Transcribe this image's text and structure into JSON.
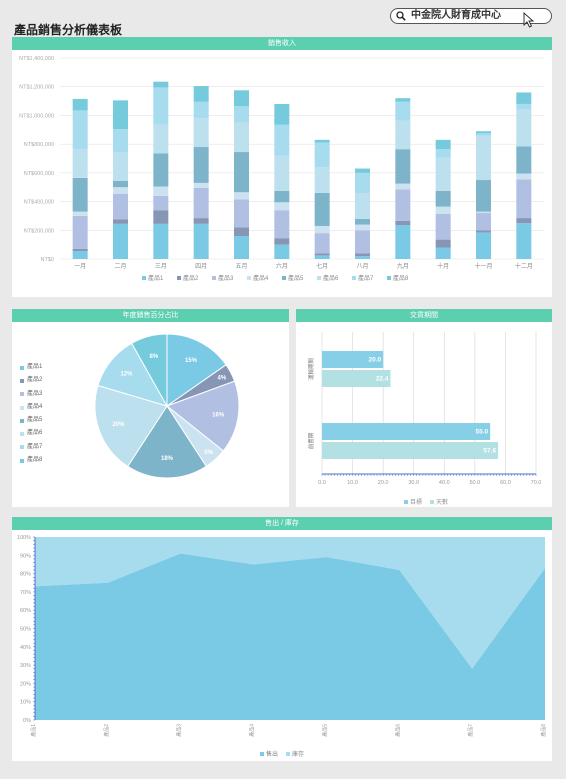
{
  "page_title": "產品銷售分析儀表板",
  "search": {
    "text": "中金院人財育成中心"
  },
  "colors": [
    "#7bcae5",
    "#8696b4",
    "#b0bfe2",
    "#cbe3f1",
    "#7eb4c9",
    "#bde0ee",
    "#a7dbee",
    "#75cbdc"
  ],
  "chart_data": [
    {
      "type": "bar",
      "stacked": true,
      "title": "銷售收入",
      "categories": [
        "一月",
        "二月",
        "三月",
        "四月",
        "五月",
        "六月",
        "七月",
        "八月",
        "九月",
        "十月",
        "十一月",
        "十二月"
      ],
      "ylim": [
        0,
        1400000
      ],
      "yticks": [
        0,
        200000,
        400000,
        600000,
        800000,
        1000000,
        1200000,
        1400000
      ],
      "ytick_labels": [
        "NT$0",
        "NT$200,000",
        "NT$400,000",
        "NT$600,000",
        "NT$800,000",
        "NT$1,000,000",
        "NT$1,200,000",
        "NT$1,400,000"
      ],
      "grid": true,
      "legend_position": "bottom",
      "series": [
        {
          "name": "產品1",
          "values": [
            55000,
            245000,
            245000,
            245000,
            160000,
            100000,
            25000,
            20000,
            235000,
            80000,
            185000,
            250000
          ]
        },
        {
          "name": "產品2",
          "values": [
            15000,
            30000,
            95000,
            40000,
            60000,
            45000,
            15000,
            20000,
            30000,
            55000,
            15000,
            35000
          ]
        },
        {
          "name": "產品3",
          "values": [
            230000,
            180000,
            100000,
            210000,
            195000,
            195000,
            140000,
            160000,
            220000,
            180000,
            120000,
            270000
          ]
        },
        {
          "name": "產品4",
          "values": [
            30000,
            45000,
            65000,
            35000,
            50000,
            55000,
            50000,
            40000,
            40000,
            50000,
            10000,
            40000
          ]
        },
        {
          "name": "產品5",
          "values": [
            235000,
            45000,
            230000,
            250000,
            280000,
            80000,
            230000,
            40000,
            240000,
            110000,
            220000,
            190000
          ]
        },
        {
          "name": "產品6",
          "values": [
            200000,
            200000,
            200000,
            200000,
            205000,
            245000,
            180000,
            180000,
            200000,
            230000,
            310000,
            260000
          ]
        },
        {
          "name": "產品7",
          "values": [
            270000,
            160000,
            260000,
            115000,
            115000,
            215000,
            170000,
            140000,
            130000,
            60000,
            15000,
            35000
          ]
        },
        {
          "name": "產品8",
          "values": [
            80000,
            200000,
            40000,
            110000,
            110000,
            145000,
            20000,
            30000,
            25000,
            65000,
            15000,
            80000
          ]
        }
      ]
    },
    {
      "type": "pie",
      "title": "年度銷售百分占比",
      "legend_position": "left",
      "labels": [
        "產品1",
        "產品2",
        "產品3",
        "產品4",
        "產品5",
        "產品6",
        "產品7",
        "產品8"
      ],
      "values": [
        15,
        4,
        16,
        5,
        18,
        20,
        12,
        8
      ],
      "data_labels": [
        "15%",
        "4%",
        "16%",
        "5%",
        "18%",
        "20%",
        "12%",
        "8%"
      ]
    },
    {
      "type": "bar",
      "orientation": "horizontal",
      "title": "交貨期間",
      "categories": [
        "運輸期間",
        "前置期"
      ],
      "xlim": [
        0,
        70
      ],
      "xticks": [
        0,
        10,
        20,
        30,
        40,
        50,
        60,
        70
      ],
      "xtick_labels": [
        "0.0",
        "10.0",
        "20.0",
        "30.0",
        "40.0",
        "50.0",
        "60.0",
        "70.0"
      ],
      "legend_position": "bottom",
      "series": [
        {
          "name": "目標",
          "values": [
            20.0,
            55.0
          ],
          "data_labels": [
            "20.0",
            "55.0"
          ]
        },
        {
          "name": "天數",
          "values": [
            22.4,
            57.6
          ],
          "data_labels": [
            "22.4",
            "57.6"
          ]
        }
      ]
    },
    {
      "type": "area",
      "title": "售出 / 庫存",
      "x": [
        "產品1",
        "產品2",
        "產品3",
        "產品4",
        "產品5",
        "產品6",
        "產品7",
        "產品8"
      ],
      "ylim": [
        0,
        100
      ],
      "yticks": [
        0,
        10,
        20,
        30,
        40,
        50,
        60,
        70,
        80,
        90,
        100
      ],
      "ytick_labels": [
        "0%",
        "10%",
        "20%",
        "30%",
        "40%",
        "50%",
        "60%",
        "70%",
        "80%",
        "90%",
        "100%"
      ],
      "legend_position": "bottom",
      "series": [
        {
          "name": "售出",
          "values": [
            73,
            75,
            91,
            85,
            89,
            82,
            28,
            83
          ]
        },
        {
          "name": "庫存",
          "values": [
            27,
            25,
            9,
            15,
            11,
            18,
            72,
            17
          ]
        }
      ]
    }
  ]
}
